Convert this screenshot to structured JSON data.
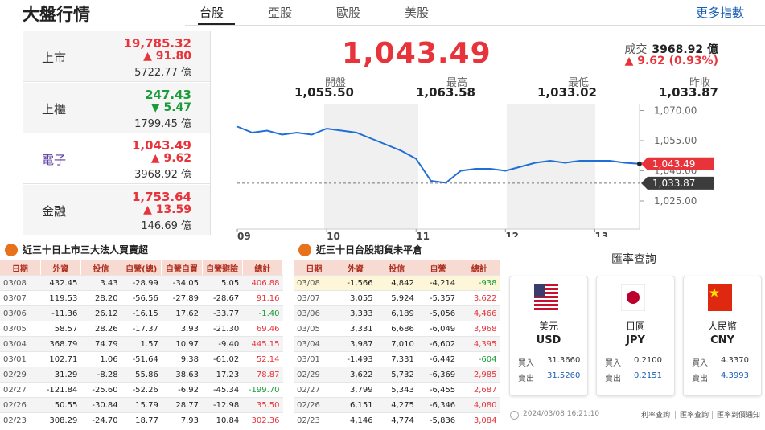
{
  "header": {
    "title": "大盤行情",
    "tabs": [
      "台股",
      "亞股",
      "歐股",
      "美股"
    ],
    "active_tab": 0,
    "more": "更多指數"
  },
  "indices": [
    {
      "name": "上市",
      "value": "19,785.32",
      "change": "▲ 91.80",
      "volume": "5722.77 億",
      "color": "#e8333b"
    },
    {
      "name": "上櫃",
      "value": "247.43",
      "change": "▼ 5.47",
      "volume": "1799.45 億",
      "color": "#1a9c3a"
    },
    {
      "name": "電子",
      "value": "1,043.49",
      "change": "▲ 9.62",
      "volume": "3968.92 億",
      "color": "#e8333b",
      "selected": true
    },
    {
      "name": "金融",
      "value": "1,753.64",
      "change": "▲ 13.59",
      "volume": "146.69 億",
      "color": "#e8333b"
    }
  ],
  "quote": {
    "price": "1,043.49",
    "volume_label": "成交",
    "volume": "3968.92 億",
    "change": "▲ 9.62 (0.93%)",
    "color": "#e8333b",
    "stats": [
      {
        "label": "開盤",
        "value": "1,055.50"
      },
      {
        "label": "最高",
        "value": "1,063.58"
      },
      {
        "label": "最低",
        "value": "1,033.02"
      },
      {
        "label": "昨收",
        "value": "1,033.87"
      }
    ]
  },
  "chart_data": {
    "type": "line",
    "color": "#1f6fd6",
    "x": [
      0,
      10,
      20,
      30,
      40,
      50,
      60,
      70,
      80,
      90,
      100,
      110,
      120,
      130,
      140,
      150,
      160,
      170,
      180,
      190,
      200,
      210,
      220,
      230,
      240,
      250,
      260,
      270
    ],
    "values": [
      1062,
      1059,
      1060,
      1058,
      1059,
      1058,
      1061,
      1060,
      1059,
      1056,
      1053,
      1050,
      1046,
      1035,
      1034,
      1040,
      1041,
      1041,
      1040,
      1042,
      1044,
      1045,
      1044,
      1045,
      1045,
      1045,
      1044,
      1043.49
    ],
    "xlim": [
      0,
      270
    ],
    "ylim": [
      1011,
      1073
    ],
    "xticks": [
      {
        "value": 0,
        "label": "09"
      },
      {
        "value": 60,
        "label": "10"
      },
      {
        "value": 120,
        "label": "11"
      },
      {
        "value": 180,
        "label": "12"
      },
      {
        "value": 240,
        "label": "13"
      }
    ],
    "yticks": [
      {
        "value": 1025,
        "label": "1,025.00"
      },
      {
        "value": 1040,
        "label": "1,040.00"
      },
      {
        "value": 1055,
        "label": "1,055.00"
      },
      {
        "value": 1070,
        "label": "1,070.00"
      }
    ],
    "annotations": [
      {
        "value": 1033.87,
        "label": "1,033.87",
        "color": "#3c3c3c",
        "dashed": true
      },
      {
        "value": 1043.49,
        "label": "1,043.49",
        "color": "#e8333b"
      }
    ]
  },
  "institutional": {
    "title": "近三十日上市三大法人買賣超",
    "columns": [
      "日期",
      "外資",
      "投信",
      "自營(總)",
      "自營自買",
      "自營避險",
      "總計"
    ],
    "rows": [
      [
        "03/08",
        "432.45",
        "3.43",
        "-28.99",
        "-34.05",
        "5.05",
        "406.88"
      ],
      [
        "03/07",
        "119.53",
        "28.20",
        "-56.56",
        "-27.89",
        "-28.67",
        "91.16"
      ],
      [
        "03/06",
        "-11.36",
        "26.12",
        "-16.15",
        "17.62",
        "-33.77",
        "-1.40"
      ],
      [
        "03/05",
        "58.57",
        "28.26",
        "-17.37",
        "3.93",
        "-21.30",
        "69.46"
      ],
      [
        "03/04",
        "368.79",
        "74.79",
        "1.57",
        "10.97",
        "-9.40",
        "445.15"
      ],
      [
        "03/01",
        "102.71",
        "1.06",
        "-51.64",
        "9.38",
        "-61.02",
        "52.14"
      ],
      [
        "02/29",
        "31.29",
        "-8.28",
        "55.86",
        "38.63",
        "17.23",
        "78.87"
      ],
      [
        "02/27",
        "-121.84",
        "-25.60",
        "-52.26",
        "-6.92",
        "-45.34",
        "-199.70"
      ],
      [
        "02/26",
        "50.55",
        "-30.84",
        "15.79",
        "28.77",
        "-12.98",
        "35.50"
      ],
      [
        "02/23",
        "308.29",
        "-24.70",
        "18.77",
        "7.93",
        "10.84",
        "302.36"
      ]
    ]
  },
  "futures": {
    "title": "近三十日台股期貨未平倉",
    "columns": [
      "日期",
      "外資",
      "投信",
      "自營",
      "總計"
    ],
    "highlight_row": 0,
    "rows": [
      [
        "03/08",
        "-1,566",
        "4,842",
        "-4,214",
        "-938"
      ],
      [
        "03/07",
        "3,055",
        "5,924",
        "-5,357",
        "3,622"
      ],
      [
        "03/06",
        "3,333",
        "6,189",
        "-5,056",
        "4,466"
      ],
      [
        "03/05",
        "3,331",
        "6,686",
        "-6,049",
        "3,968"
      ],
      [
        "03/04",
        "3,987",
        "7,010",
        "-6,602",
        "4,395"
      ],
      [
        "03/01",
        "-1,493",
        "7,331",
        "-6,442",
        "-604"
      ],
      [
        "02/29",
        "3,622",
        "5,732",
        "-6,369",
        "2,985"
      ],
      [
        "02/27",
        "3,799",
        "5,343",
        "-6,455",
        "2,687"
      ],
      [
        "02/26",
        "6,151",
        "4,275",
        "-6,346",
        "4,080"
      ],
      [
        "02/23",
        "4,146",
        "4,774",
        "-5,836",
        "3,084"
      ]
    ]
  },
  "fx": {
    "title": "匯率查詢",
    "currencies": [
      {
        "name": "美元",
        "code": "USD",
        "buy_label": "買入",
        "buy": "31.3660",
        "sell_label": "賣出",
        "sell": "31.5260"
      },
      {
        "name": "日圓",
        "code": "JPY",
        "buy_label": "買入",
        "buy": "0.2100",
        "sell_label": "賣出",
        "sell": "0.2151"
      },
      {
        "name": "人民幣",
        "code": "CNY",
        "buy_label": "買入",
        "buy": "4.3370",
        "sell_label": "賣出",
        "sell": "4.3993"
      }
    ],
    "timestamp": "2024/03/08 16:21:10",
    "links": [
      "利率查詢",
      "匯率查詢",
      "匯率到價通知"
    ]
  }
}
